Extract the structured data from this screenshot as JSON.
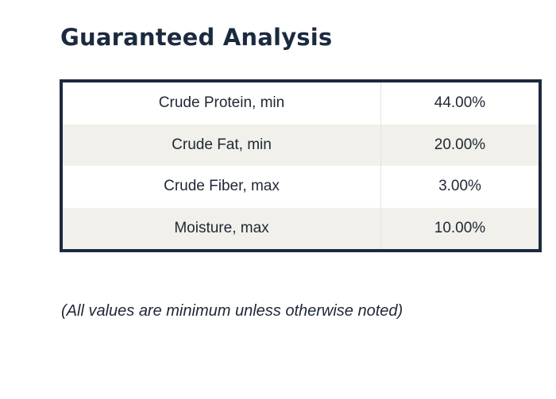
{
  "title": "Guaranteed Analysis",
  "table": {
    "rows": [
      {
        "name": "Crude Protein, min",
        "value": "44.00%"
      },
      {
        "name": "Crude Fat, min",
        "value": "20.00%"
      },
      {
        "name": "Crude Fiber, max",
        "value": "3.00%"
      },
      {
        "name": "Moisture, max",
        "value": "10.00%"
      }
    ]
  },
  "note": "(All values are minimum unless otherwise noted)"
}
